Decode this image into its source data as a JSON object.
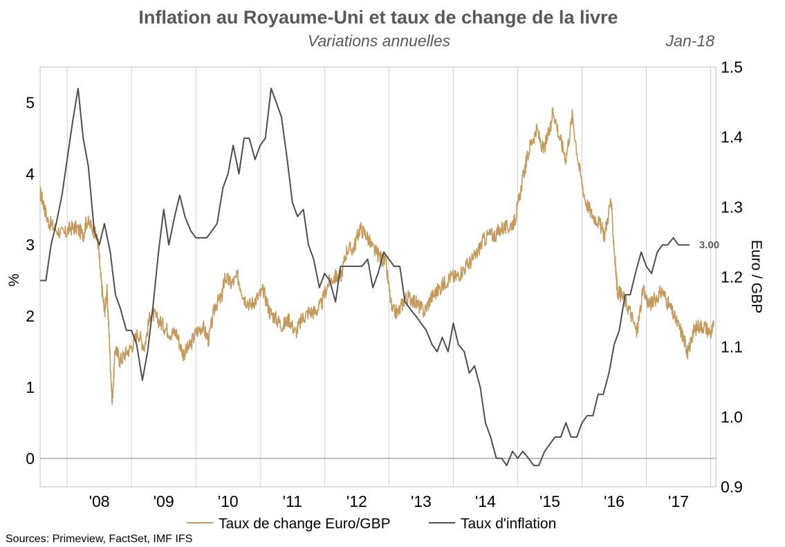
{
  "chart_data": {
    "type": "line",
    "title": "Inflation au Royaume-Uni et taux de change de la livre",
    "subtitle": "Variations annuelles",
    "date_label": "Jan-18",
    "ylabel_left": "%",
    "ylabel_right": "Euro / GBP",
    "ylim_left": [
      -0.4,
      5.5
    ],
    "ylim_right": [
      0.9,
      1.5
    ],
    "yticks_left": [
      "0",
      "1",
      "2",
      "3",
      "4",
      "5"
    ],
    "yticks_right": [
      "0.9",
      "1.0",
      "1.1",
      "1.2",
      "1.3",
      "1.4",
      "1.5"
    ],
    "xticks": [
      "'08",
      "'09",
      "'10",
      "'11",
      "'12",
      "'13",
      "'14",
      "'15",
      "'16",
      "'17"
    ],
    "xlim": [
      2007.58,
      2018.08
    ],
    "grid": "vertical",
    "legend_placement": "bottom",
    "end_label": "3.00",
    "source": "Sources: Primeview, FactSet, IMF IFS",
    "series": [
      {
        "name": "Taux de change Euro/GBP",
        "axis": "right",
        "color": "#C49A5A",
        "points": [
          [
            2007.58,
            1.32
          ],
          [
            2007.62,
            1.31
          ],
          [
            2007.7,
            1.28
          ],
          [
            2007.8,
            1.27
          ],
          [
            2007.95,
            1.26
          ],
          [
            2008.05,
            1.27
          ],
          [
            2008.15,
            1.27
          ],
          [
            2008.25,
            1.26
          ],
          [
            2008.3,
            1.28
          ],
          [
            2008.4,
            1.27
          ],
          [
            2008.48,
            1.25
          ],
          [
            2008.52,
            1.2
          ],
          [
            2008.58,
            1.15
          ],
          [
            2008.62,
            1.18
          ],
          [
            2008.66,
            1.1
          ],
          [
            2008.7,
            1.02
          ],
          [
            2008.75,
            1.1
          ],
          [
            2008.82,
            1.08
          ],
          [
            2008.9,
            1.09
          ],
          [
            2009.0,
            1.1
          ],
          [
            2009.1,
            1.12
          ],
          [
            2009.2,
            1.1
          ],
          [
            2009.3,
            1.15
          ],
          [
            2009.4,
            1.14
          ],
          [
            2009.5,
            1.13
          ],
          [
            2009.6,
            1.12
          ],
          [
            2009.7,
            1.12
          ],
          [
            2009.8,
            1.09
          ],
          [
            2009.9,
            1.1
          ],
          [
            2010.0,
            1.12
          ],
          [
            2010.1,
            1.13
          ],
          [
            2010.2,
            1.11
          ],
          [
            2010.3,
            1.16
          ],
          [
            2010.4,
            1.17
          ],
          [
            2010.45,
            1.2
          ],
          [
            2010.55,
            1.19
          ],
          [
            2010.65,
            1.2
          ],
          [
            2010.75,
            1.17
          ],
          [
            2010.85,
            1.16
          ],
          [
            2010.95,
            1.17
          ],
          [
            2011.05,
            1.18
          ],
          [
            2011.15,
            1.15
          ],
          [
            2011.25,
            1.14
          ],
          [
            2011.35,
            1.13
          ],
          [
            2011.45,
            1.14
          ],
          [
            2011.55,
            1.12
          ],
          [
            2011.65,
            1.14
          ],
          [
            2011.75,
            1.15
          ],
          [
            2011.85,
            1.15
          ],
          [
            2011.95,
            1.16
          ],
          [
            2012.05,
            1.19
          ],
          [
            2012.15,
            1.2
          ],
          [
            2012.25,
            1.2
          ],
          [
            2012.35,
            1.24
          ],
          [
            2012.45,
            1.24
          ],
          [
            2012.55,
            1.27
          ],
          [
            2012.65,
            1.26
          ],
          [
            2012.75,
            1.24
          ],
          [
            2012.85,
            1.23
          ],
          [
            2012.95,
            1.22
          ],
          [
            2013.05,
            1.15
          ],
          [
            2013.15,
            1.15
          ],
          [
            2013.25,
            1.17
          ],
          [
            2013.35,
            1.17
          ],
          [
            2013.45,
            1.16
          ],
          [
            2013.55,
            1.15
          ],
          [
            2013.65,
            1.17
          ],
          [
            2013.75,
            1.18
          ],
          [
            2013.85,
            1.19
          ],
          [
            2013.95,
            1.2
          ],
          [
            2014.05,
            1.2
          ],
          [
            2014.15,
            1.21
          ],
          [
            2014.25,
            1.22
          ],
          [
            2014.35,
            1.23
          ],
          [
            2014.45,
            1.25
          ],
          [
            2014.55,
            1.26
          ],
          [
            2014.65,
            1.26
          ],
          [
            2014.75,
            1.27
          ],
          [
            2014.85,
            1.27
          ],
          [
            2014.95,
            1.28
          ],
          [
            2015.0,
            1.3
          ],
          [
            2015.1,
            1.35
          ],
          [
            2015.2,
            1.39
          ],
          [
            2015.3,
            1.41
          ],
          [
            2015.4,
            1.38
          ],
          [
            2015.5,
            1.41
          ],
          [
            2015.55,
            1.44
          ],
          [
            2015.65,
            1.4
          ],
          [
            2015.75,
            1.37
          ],
          [
            2015.85,
            1.43
          ],
          [
            2015.95,
            1.36
          ],
          [
            2016.05,
            1.31
          ],
          [
            2016.15,
            1.29
          ],
          [
            2016.25,
            1.28
          ],
          [
            2016.35,
            1.26
          ],
          [
            2016.45,
            1.31
          ],
          [
            2016.5,
            1.24
          ],
          [
            2016.55,
            1.18
          ],
          [
            2016.65,
            1.17
          ],
          [
            2016.75,
            1.15
          ],
          [
            2016.85,
            1.12
          ],
          [
            2016.95,
            1.18
          ],
          [
            2017.05,
            1.16
          ],
          [
            2017.15,
            1.17
          ],
          [
            2017.25,
            1.18
          ],
          [
            2017.35,
            1.16
          ],
          [
            2017.45,
            1.14
          ],
          [
            2017.55,
            1.12
          ],
          [
            2017.62,
            1.1
          ],
          [
            2017.65,
            1.09
          ],
          [
            2017.72,
            1.12
          ],
          [
            2017.8,
            1.13
          ],
          [
            2017.9,
            1.13
          ],
          [
            2018.0,
            1.12
          ],
          [
            2018.05,
            1.13
          ]
        ]
      },
      {
        "name": "Taux d'inflation",
        "axis": "left",
        "color": "#4D4D4D",
        "points": [
          [
            2007.58,
            2.5
          ],
          [
            2007.67,
            2.5
          ],
          [
            2007.75,
            3.0
          ],
          [
            2007.83,
            3.3
          ],
          [
            2007.92,
            3.7
          ],
          [
            2008.0,
            4.2
          ],
          [
            2008.08,
            4.7
          ],
          [
            2008.17,
            5.2
          ],
          [
            2008.25,
            4.5
          ],
          [
            2008.33,
            4.1
          ],
          [
            2008.42,
            3.2
          ],
          [
            2008.5,
            3.0
          ],
          [
            2008.58,
            3.3
          ],
          [
            2008.67,
            2.9
          ],
          [
            2008.75,
            2.3
          ],
          [
            2008.83,
            2.1
          ],
          [
            2008.92,
            1.8
          ],
          [
            2009.0,
            1.8
          ],
          [
            2009.08,
            1.6
          ],
          [
            2009.17,
            1.1
          ],
          [
            2009.25,
            1.5
          ],
          [
            2009.33,
            2.1
          ],
          [
            2009.42,
            2.9
          ],
          [
            2009.5,
            3.5
          ],
          [
            2009.58,
            3.0
          ],
          [
            2009.67,
            3.4
          ],
          [
            2009.75,
            3.7
          ],
          [
            2009.83,
            3.4
          ],
          [
            2009.92,
            3.2
          ],
          [
            2010.0,
            3.1
          ],
          [
            2010.17,
            3.1
          ],
          [
            2010.33,
            3.3
          ],
          [
            2010.42,
            3.8
          ],
          [
            2010.5,
            4.0
          ],
          [
            2010.58,
            4.4
          ],
          [
            2010.67,
            4.0
          ],
          [
            2010.75,
            4.5
          ],
          [
            2010.83,
            4.5
          ],
          [
            2010.92,
            4.2
          ],
          [
            2011.0,
            4.4
          ],
          [
            2011.08,
            4.5
          ],
          [
            2011.17,
            5.2
          ],
          [
            2011.25,
            5.0
          ],
          [
            2011.33,
            4.8
          ],
          [
            2011.42,
            4.2
          ],
          [
            2011.5,
            3.6
          ],
          [
            2011.58,
            3.4
          ],
          [
            2011.67,
            3.5
          ],
          [
            2011.75,
            3.0
          ],
          [
            2011.83,
            2.8
          ],
          [
            2011.92,
            2.4
          ],
          [
            2012.0,
            2.6
          ],
          [
            2012.08,
            2.5
          ],
          [
            2012.17,
            2.2
          ],
          [
            2012.25,
            2.7
          ],
          [
            2012.42,
            2.7
          ],
          [
            2012.58,
            2.7
          ],
          [
            2012.67,
            2.8
          ],
          [
            2012.75,
            2.4
          ],
          [
            2012.83,
            2.6
          ],
          [
            2012.92,
            2.9
          ],
          [
            2013.0,
            2.8
          ],
          [
            2013.08,
            2.7
          ],
          [
            2013.17,
            2.7
          ],
          [
            2013.25,
            2.2
          ],
          [
            2013.33,
            2.1
          ],
          [
            2013.42,
            2.0
          ],
          [
            2013.5,
            1.9
          ],
          [
            2013.58,
            1.8
          ],
          [
            2013.67,
            1.6
          ],
          [
            2013.75,
            1.5
          ],
          [
            2013.83,
            1.7
          ],
          [
            2013.92,
            1.5
          ],
          [
            2014.0,
            1.9
          ],
          [
            2014.08,
            1.6
          ],
          [
            2014.17,
            1.5
          ],
          [
            2014.25,
            1.2
          ],
          [
            2014.33,
            1.3
          ],
          [
            2014.42,
            1.0
          ],
          [
            2014.5,
            0.5
          ],
          [
            2014.58,
            0.3
          ],
          [
            2014.67,
            0.0
          ],
          [
            2014.75,
            0.0
          ],
          [
            2014.83,
            -0.1
          ],
          [
            2014.92,
            0.1
          ],
          [
            2015.0,
            0.0
          ],
          [
            2015.08,
            0.1
          ],
          [
            2015.17,
            0.0
          ],
          [
            2015.25,
            -0.1
          ],
          [
            2015.33,
            -0.1
          ],
          [
            2015.42,
            0.1
          ],
          [
            2015.5,
            0.2
          ],
          [
            2015.58,
            0.3
          ],
          [
            2015.67,
            0.3
          ],
          [
            2015.75,
            0.5
          ],
          [
            2015.83,
            0.3
          ],
          [
            2015.92,
            0.3
          ],
          [
            2016.0,
            0.5
          ],
          [
            2016.08,
            0.6
          ],
          [
            2016.17,
            0.6
          ],
          [
            2016.25,
            0.9
          ],
          [
            2016.33,
            0.9
          ],
          [
            2016.42,
            1.2
          ],
          [
            2016.5,
            1.6
          ],
          [
            2016.58,
            1.8
          ],
          [
            2016.67,
            2.3
          ],
          [
            2016.75,
            2.3
          ],
          [
            2016.83,
            2.6
          ],
          [
            2016.92,
            2.9
          ],
          [
            2017.0,
            2.7
          ],
          [
            2017.08,
            2.6
          ],
          [
            2017.17,
            2.9
          ],
          [
            2017.25,
            3.0
          ],
          [
            2017.33,
            3.0
          ],
          [
            2017.42,
            3.1
          ],
          [
            2017.5,
            3.0
          ],
          [
            2017.58,
            3.0
          ],
          [
            2017.67,
            3.0
          ]
        ]
      }
    ]
  }
}
